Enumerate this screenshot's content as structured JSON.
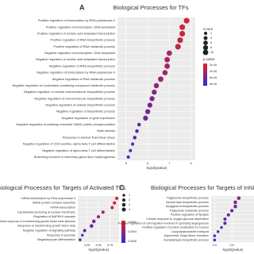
{
  "chart_data": [
    {
      "type": "dot",
      "panel": "A",
      "title": "Biological Processes for TFs",
      "x_label": "-log10(pvalue)",
      "categories": [
        "Positive regulation of transcription by RNA polymerase II",
        "Positive regulation of transcription, DNA-templated",
        "Positive regulation of nucleic acid-templated transcription",
        "Positive regulation of RNA biosynthetic process",
        "Positive regulation of RNA metabolic process",
        "Negative regulation of transcription, DNA-templated",
        "Negative regulation of nucleic acid-templated transcription",
        "Negative regulation of RNA biosynthetic process",
        "Negative regulation of transcription by RNA polymerase II",
        "Negative regulation of RNA metabolic process",
        "Negative regulation of nucleobase-containing compound metabolic process",
        "Negative regulation of cellular macromolecule biosynthetic process",
        "Negative regulation of macromolecule biosynthetic process",
        "Negative regulation of cellular biosynthetic process",
        "Negative regulation of biosynthetic process",
        "Negative regulation of gene expression",
        "Negative regulation of pathway-restricted SMAD protein phosphorylation",
        "Male meiosis",
        "Response to laminar fluid shear stress",
        "Negative regulation of CD4-positive, alpha-beta T cell differentiation",
        "Negative regulation of alpha-beta T cell differentiation",
        "Branching involved in mammary gland duct morphogenesis"
      ],
      "values": [
        7.8,
        7.6,
        7.6,
        7.5,
        7.4,
        7.0,
        6.9,
        6.9,
        6.8,
        6.6,
        6.4,
        6.3,
        6.2,
        6.1,
        6.0,
        5.9,
        5.6,
        5.5,
        5.4,
        5.3,
        5.2,
        5.1
      ],
      "sizes": [
        11,
        11,
        11,
        11,
        11,
        10,
        10,
        10,
        9,
        10,
        9,
        8,
        8,
        8,
        8,
        8,
        3,
        3,
        3,
        2,
        2,
        2
      ],
      "xlim": [
        4.6,
        8.2
      ],
      "xticks": [
        5,
        6,
        7,
        8
      ],
      "colormap": [
        "#2b2bd9",
        "#e8231f"
      ],
      "size_legend_title": "Count",
      "size_legend": [
        2,
        4,
        6,
        8,
        10
      ],
      "color_legend_title": "p.value",
      "color_legend": [
        "2e-06",
        "4e-06",
        "6e-06",
        "8e-06"
      ]
    },
    {
      "type": "dot",
      "title": "Biological Processes for Targets of Activated TFs",
      "x_label": "-log10(pvalue)",
      "categories": [
        "mRNA transcription by RNA polymerase II",
        "SMAD protein complex assembly",
        "mRNA transcription",
        "Cytoskeletal anchoring at nuclear membrane",
        "Regulation of MAPKKK cascade",
        "Cellular response to transforming growth factor beta stimulus",
        "Response to transforming growth factor beta",
        "Negative regulation of signaling pathway",
        "Response to peroxide",
        "Megakaryocyte differentiation"
      ],
      "values": [
        3.9,
        3.85,
        3.8,
        3.6,
        3.5,
        3.4,
        3.35,
        3.2,
        3.15,
        3.1
      ],
      "sizes": [
        2,
        2,
        2,
        2,
        2,
        3,
        3,
        2,
        1,
        1
      ],
      "xlim": [
        3.05,
        3.95
      ],
      "xticks": [
        3.25,
        {
          "value": 3.5,
          "label": "3.50"
        },
        3.75
      ],
      "colormap": [
        "#2b2bd9",
        "#e8231f"
      ],
      "size_legend": [
        1,
        2,
        3,
        4
      ],
      "color_legend": [
        "0.0002",
        "0.0004",
        "0.0006"
      ]
    },
    {
      "type": "dot",
      "panel": "C",
      "title": "Biological Processes for Targets of Inhibited TFs",
      "x_label": "-log10(pvalue)",
      "categories": [
        "Triglyceride biosynthetic process",
        "Neutral lipid biosynthetic process",
        "Acylglycerol biosynthetic process",
        "Triglyceride metabolic process",
        "Positive regulation of lipolysis",
        "Cellular response to oxygen-glucose deprivation",
        "Positive regulation of cell migration involved in sprouting angiogenesis",
        "Positive regulation of protein localization to nucleus",
        "Lipopolysaccharide transport",
        "Asymmetric Golgi ribbon formation",
        "Acetaldehyde biosynthetic process"
      ],
      "values": [
        3.7,
        3.6,
        3.6,
        3.5,
        3.4,
        3.3,
        3.3,
        3.2,
        3.1,
        3.0,
        3.0
      ],
      "sizes": [
        3,
        3,
        3,
        2,
        2,
        2,
        2,
        1,
        1,
        1,
        1
      ],
      "xlim": [
        2.9,
        4.6
      ],
      "xticks": [
        {
          "value": 3.0,
          "label": "3.0"
        },
        3.5
      ],
      "colormap": [
        "#2b2bd9",
        "#e8231f"
      ]
    }
  ]
}
